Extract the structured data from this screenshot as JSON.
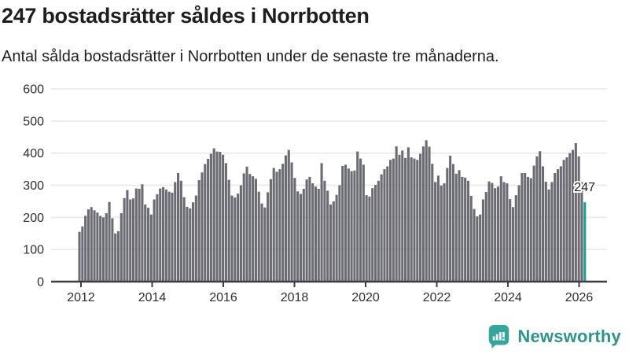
{
  "header": {
    "title": "247 bostadsrätter såldes i Norrbotten",
    "subtitle": "Antal sålda bostadsrätter i Norrbotten under de senaste tre månaderna."
  },
  "chart_data": {
    "type": "bar",
    "title": "247 bostadsrätter såldes i Norrbotten",
    "ylabel": "",
    "xlabel": "",
    "frequency": "monthly",
    "x_start": "2012-01",
    "x_end": "2026-02",
    "ylim": [
      0,
      600
    ],
    "yticks": [
      0,
      100,
      200,
      300,
      400,
      500,
      600
    ],
    "xticks": [
      2012,
      2014,
      2016,
      2018,
      2020,
      2022,
      2024,
      2026
    ],
    "grid": "horizontal",
    "values": [
      155,
      172,
      205,
      225,
      232,
      222,
      215,
      205,
      200,
      213,
      248,
      197,
      150,
      157,
      213,
      260,
      285,
      256,
      259,
      290,
      289,
      303,
      240,
      230,
      209,
      256,
      272,
      290,
      294,
      287,
      280,
      277,
      310,
      338,
      314,
      263,
      233,
      228,
      247,
      268,
      316,
      340,
      366,
      382,
      398,
      415,
      405,
      404,
      395,
      369,
      317,
      268,
      262,
      274,
      300,
      337,
      358,
      335,
      328,
      320,
      280,
      243,
      231,
      278,
      319,
      354,
      342,
      350,
      367,
      393,
      410,
      371,
      323,
      281,
      273,
      289,
      318,
      326,
      306,
      296,
      289,
      369,
      314,
      283,
      240,
      250,
      270,
      300,
      360,
      364,
      352,
      344,
      346,
      405,
      383,
      364,
      269,
      265,
      291,
      301,
      314,
      334,
      350,
      359,
      379,
      383,
      421,
      395,
      408,
      385,
      418,
      387,
      383,
      379,
      398,
      421,
      440,
      420,
      367,
      310,
      330,
      299,
      306,
      354,
      392,
      366,
      336,
      347,
      326,
      324,
      314,
      267,
      226,
      203,
      209,
      256,
      279,
      312,
      307,
      291,
      296,
      328,
      310,
      306,
      257,
      232,
      269,
      300,
      338,
      338,
      326,
      322,
      361,
      390,
      406,
      359,
      311,
      287,
      310,
      338,
      350,
      359,
      379,
      387,
      400,
      410,
      431,
      390,
      310,
      247
    ],
    "highlight_index": 169,
    "annotation": {
      "text": "247",
      "index": 169
    },
    "colors": {
      "bar": "#6b6b74",
      "highlight": "#1b9e93",
      "grid": "#e7e7e7",
      "axis": "#3d3d44",
      "tick_label": "#2e2e33"
    }
  },
  "footer": {
    "brand": "Newsworthy",
    "logo_icon": "bar-chart-speech-bubble-icon",
    "colors": {
      "icon": "#35a79a",
      "text": "#2f958c"
    }
  }
}
